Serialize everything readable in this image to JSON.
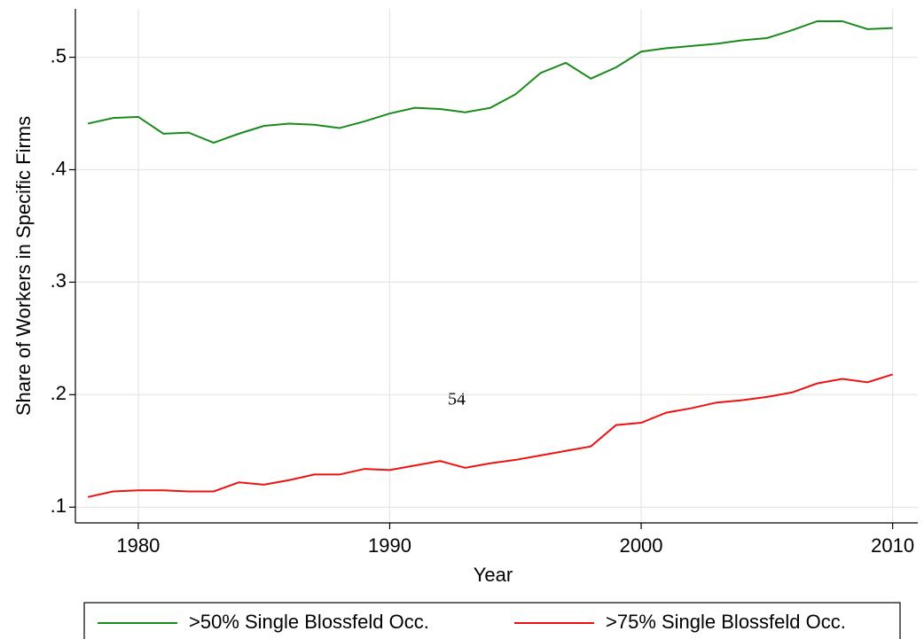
{
  "chart_data": {
    "type": "line",
    "xlabel": "Year",
    "ylabel": "Share of Workers in Specific Firms",
    "annotation": "54",
    "x": [
      1978,
      1979,
      1980,
      1981,
      1982,
      1983,
      1984,
      1985,
      1986,
      1987,
      1988,
      1989,
      1990,
      1991,
      1992,
      1993,
      1994,
      1995,
      1996,
      1997,
      1998,
      1999,
      2000,
      2001,
      2002,
      2003,
      2004,
      2005,
      2006,
      2007,
      2008,
      2009,
      2010
    ],
    "series": [
      {
        "name": ">50% Single Blossfeld Occ.",
        "color": "#1a8a1a",
        "values": [
          0.441,
          0.446,
          0.447,
          0.432,
          0.433,
          0.424,
          0.432,
          0.439,
          0.441,
          0.44,
          0.437,
          0.443,
          0.45,
          0.455,
          0.454,
          0.451,
          0.455,
          0.467,
          0.486,
          0.495,
          0.481,
          0.491,
          0.505,
          0.508,
          0.51,
          0.512,
          0.515,
          0.517,
          0.524,
          0.532,
          0.532,
          0.525,
          0.526
        ]
      },
      {
        "name": ">75% Single Blossfeld Occ.",
        "color": "#ee1111",
        "values": [
          0.109,
          0.114,
          0.115,
          0.115,
          0.114,
          0.114,
          0.122,
          0.12,
          0.124,
          0.129,
          0.129,
          0.134,
          0.133,
          0.137,
          0.141,
          0.135,
          0.139,
          0.142,
          0.146,
          0.15,
          0.154,
          0.173,
          0.175,
          0.184,
          0.188,
          0.193,
          0.195,
          0.198,
          0.202,
          0.21,
          0.214,
          0.211,
          0.218
        ]
      }
    ],
    "xlim": [
      1977.5,
      2011
    ],
    "xticks": [
      1980,
      1990,
      2000,
      2010
    ],
    "ylim": [
      0.086,
      0.543
    ],
    "yticks": [
      {
        "value": 0.1,
        "label": ".1"
      },
      {
        "value": 0.2,
        "label": ".2"
      },
      {
        "value": 0.3,
        "label": ".3"
      },
      {
        "value": 0.4,
        "label": ".4"
      },
      {
        "value": 0.5,
        "label": ".5"
      }
    ],
    "grid": true,
    "legend": "bottom"
  }
}
